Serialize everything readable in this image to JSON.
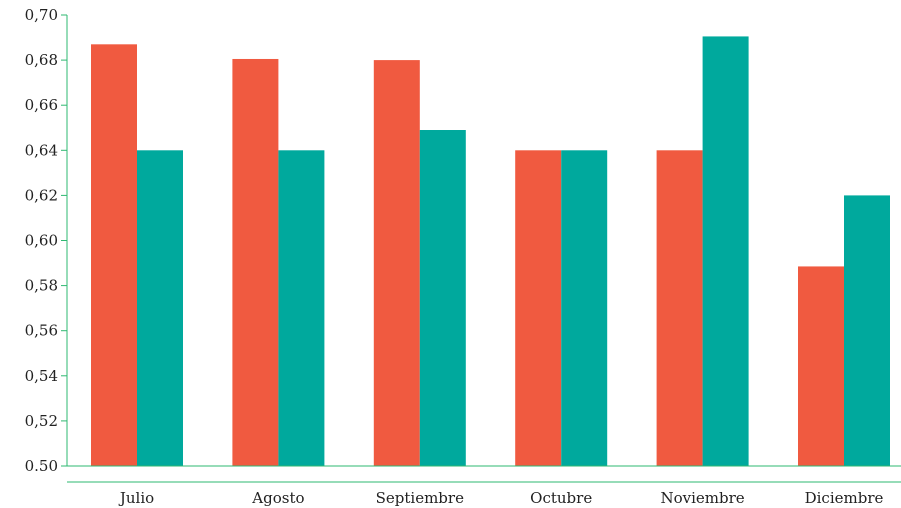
{
  "chart_data": {
    "type": "bar",
    "title": "",
    "xlabel": "",
    "ylabel": "",
    "categories": [
      "Julio",
      "Agosto",
      "Septiembre",
      "Octubre",
      "Noviembre",
      "Diciembre"
    ],
    "series": [
      {
        "values": [
          0.687,
          0.6805,
          0.68,
          0.64,
          0.64,
          0.5885
        ],
        "color": "#F05A40"
      },
      {
        "values": [
          0.64,
          0.64,
          0.649,
          0.64,
          0.6905,
          0.62
        ],
        "color": "#00A99D"
      }
    ],
    "ylim": [
      0.5,
      0.7
    ],
    "yticks": [
      "0.50",
      "0,52",
      "0,54",
      "0,56",
      "0,58",
      "0,60",
      "0,62",
      "0,64",
      "0,66",
      "0,68",
      "0,70"
    ],
    "grid": false,
    "axis_color": "#2EB872"
  }
}
